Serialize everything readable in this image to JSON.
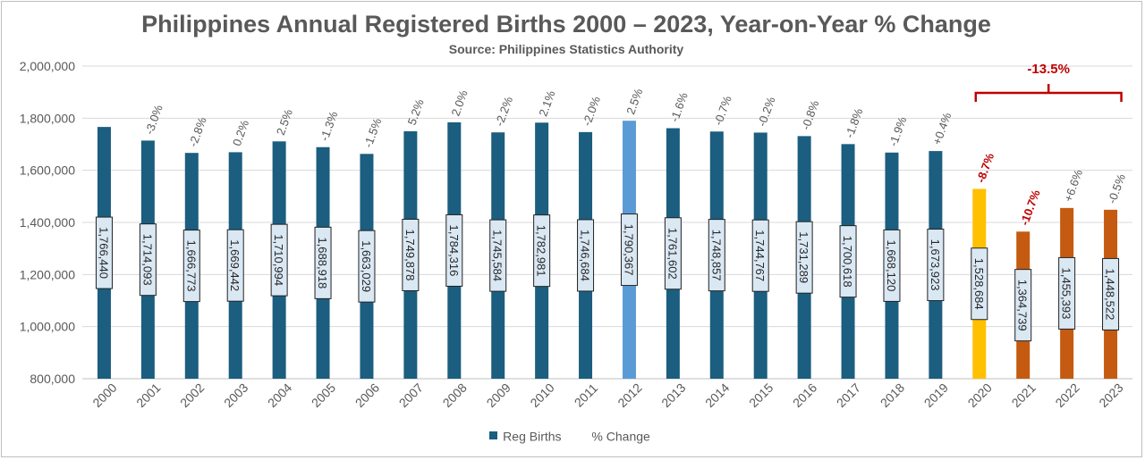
{
  "chart_data": {
    "type": "bar",
    "title": "Philippines Annual Registered Births 2000 – 2023, Year-on-Year % Change",
    "subtitle": "Source: Philippines Statistics Authority",
    "ylim": [
      800000,
      2000000
    ],
    "yticks": [
      "800,000",
      "1,000,000",
      "1,200,000",
      "1,400,000",
      "1,600,000",
      "1,800,000",
      "2,000,000"
    ],
    "ytick_values": [
      800000,
      1000000,
      1200000,
      1400000,
      1600000,
      1800000,
      2000000
    ],
    "grid": true,
    "legend_position": "bottom",
    "categories": [
      "2000",
      "2001",
      "2002",
      "2003",
      "2004",
      "2005",
      "2006",
      "2007",
      "2008",
      "2009",
      "2010",
      "2011",
      "2012",
      "2013",
      "2014",
      "2015",
      "2016",
      "2017",
      "2018",
      "2019",
      "2020",
      "2021",
      "2022",
      "2023"
    ],
    "series": [
      {
        "name": "Reg Births",
        "values": [
          1766440,
          1714093,
          1666773,
          1669442,
          1710994,
          1688918,
          1663029,
          1749878,
          1784316,
          1745584,
          1782981,
          1746684,
          1790367,
          1761602,
          1748857,
          1744767,
          1731289,
          1700618,
          1668120,
          1673923,
          1528684,
          1364739,
          1455393,
          1448522
        ],
        "data_labels": [
          "1,766,440",
          "1,714,093",
          "1,666,773",
          "1,669,442",
          "1,710,994",
          "1,688,918",
          "1,663,029",
          "1,749,878",
          "1,784,316",
          "1,745,584",
          "1,782,981",
          "1,746,684",
          "1,790,367",
          "1,761,602",
          "1,748,857",
          "1,744,767",
          "1,731,289",
          "1,700,618",
          "1,668,120",
          "1,673,923",
          "1,528,684",
          "1,364,739",
          "1,455,393",
          "1,448,522"
        ],
        "colors": [
          "#1b5e7f",
          "#1b5e7f",
          "#1b5e7f",
          "#1b5e7f",
          "#1b5e7f",
          "#1b5e7f",
          "#1b5e7f",
          "#1b5e7f",
          "#1b5e7f",
          "#1b5e7f",
          "#1b5e7f",
          "#1b5e7f",
          "#5b9bd5",
          "#1b5e7f",
          "#1b5e7f",
          "#1b5e7f",
          "#1b5e7f",
          "#1b5e7f",
          "#1b5e7f",
          "#1b5e7f",
          "#ffc000",
          "#c55a11",
          "#c55a11",
          "#c55a11"
        ]
      },
      {
        "name": "% Change",
        "labels": [
          "",
          "-3.0%",
          "-2.8%",
          "0.2%",
          "2.5%",
          "-1.3%",
          "-1.5%",
          "5.2%",
          "2.0%",
          "-2.2%",
          "2.1%",
          "-2.0%",
          "2.5%",
          "-1.6%",
          "-0.7%",
          "-0.2%",
          "-0.8%",
          "-1.8%",
          "-1.9%",
          "+0.4%",
          "-8.7%",
          "-10.7%",
          "+6.6%",
          "-0.5%"
        ],
        "highlight": [
          false,
          false,
          false,
          false,
          false,
          false,
          false,
          false,
          false,
          false,
          false,
          false,
          false,
          false,
          false,
          false,
          false,
          false,
          false,
          false,
          true,
          true,
          false,
          false
        ]
      }
    ],
    "annotations": [
      {
        "text": "-13.5%",
        "from": "2020",
        "to": "2023",
        "color": "#c00000"
      }
    ],
    "colors": {
      "default_bar": "#1b5e7f",
      "highlight_2012": "#5b9bd5",
      "year_2020": "#ffc000",
      "years_2021_2023": "#c55a11",
      "highlight_text": "#c00000",
      "text": "#595959",
      "grid": "#d9d9d9",
      "label_box_fill": "#dae8f4"
    }
  }
}
